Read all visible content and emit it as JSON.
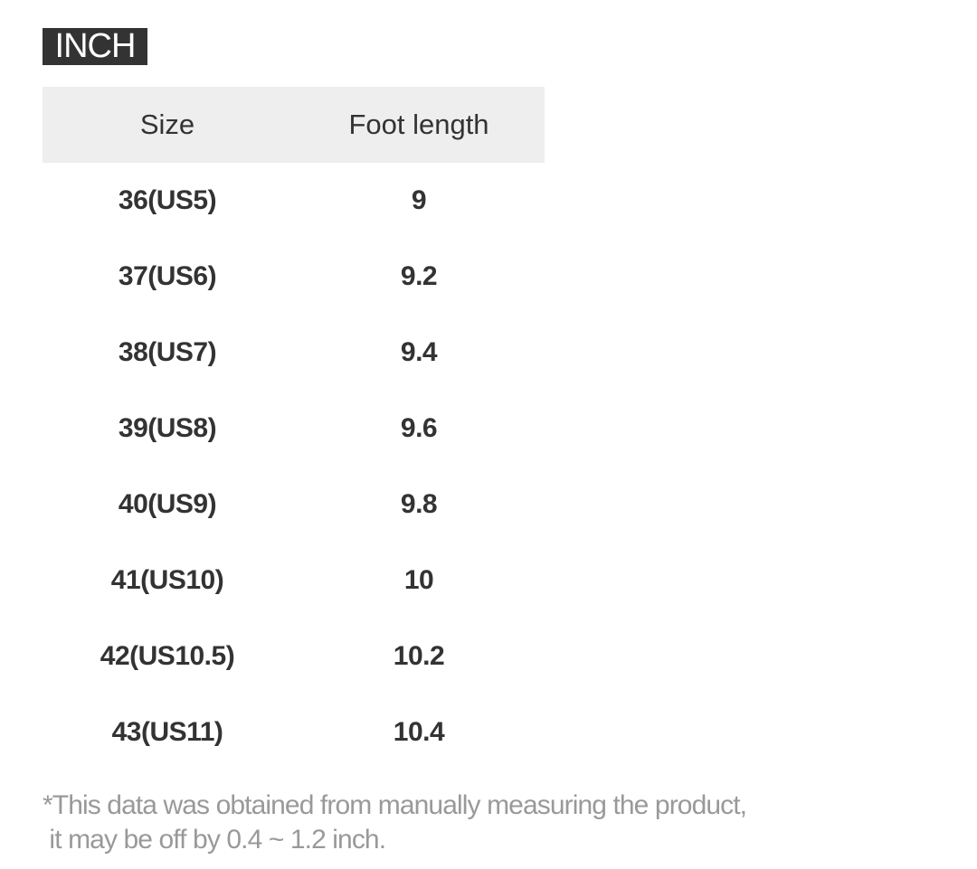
{
  "unit_label": "INCH",
  "table": {
    "headers": [
      "Size",
      "Foot length"
    ],
    "rows": [
      [
        "36(US5)",
        "9"
      ],
      [
        "37(US6)",
        "9.2"
      ],
      [
        "38(US7)",
        "9.4"
      ],
      [
        "39(US8)",
        "9.6"
      ],
      [
        "40(US9)",
        "9.8"
      ],
      [
        "41(US10)",
        "10"
      ],
      [
        "42(US10.5)",
        "10.2"
      ],
      [
        "43(US11)",
        "10.4"
      ]
    ]
  },
  "footnote": {
    "line1": "*This data was obtained from manually measuring the product,",
    "line2": " it may be off by 0.4 ~ 1.2 inch."
  }
}
